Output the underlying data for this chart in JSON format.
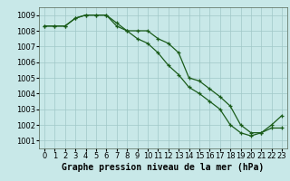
{
  "line1": [
    1008.3,
    1008.3,
    1008.3,
    1008.8,
    1009.0,
    1009.0,
    1009.0,
    1008.5,
    1008.0,
    1008.0,
    1008.0,
    1007.5,
    1007.2,
    1006.6,
    1005.0,
    1004.8,
    1004.3,
    1003.8,
    1003.2,
    1002.0,
    1001.5,
    1001.5,
    1002.0,
    1002.6
  ],
  "line2": [
    1008.3,
    1008.3,
    1008.3,
    1008.8,
    1009.0,
    1009.0,
    1009.0,
    1008.3,
    1008.0,
    1007.5,
    1007.2,
    1006.6,
    1005.8,
    1005.2,
    1004.4,
    1004.0,
    1003.5,
    1003.0,
    1002.0,
    1001.5,
    1001.3,
    1001.5,
    1001.8,
    1001.8
  ],
  "x": [
    0,
    1,
    2,
    3,
    4,
    5,
    6,
    7,
    8,
    9,
    10,
    11,
    12,
    13,
    14,
    15,
    16,
    17,
    18,
    19,
    20,
    21,
    22,
    23
  ],
  "xlim": [
    -0.5,
    23.5
  ],
  "ylim": [
    1000.5,
    1009.5
  ],
  "yticks": [
    1001,
    1002,
    1003,
    1004,
    1005,
    1006,
    1007,
    1008,
    1009
  ],
  "xtick_labels": [
    "0",
    "1",
    "2",
    "3",
    "4",
    "5",
    "6",
    "7",
    "8",
    "9",
    "10",
    "11",
    "12",
    "13",
    "14",
    "15",
    "16",
    "17",
    "18",
    "19",
    "20",
    "21",
    "22",
    "23"
  ],
  "xlabel": "Graphe pression niveau de la mer (hPa)",
  "line_color": "#1a5c1a",
  "bg_color": "#c8e8e8",
  "grid_color": "#a0c8c8",
  "label_fontsize": 6,
  "xlabel_fontsize": 7
}
